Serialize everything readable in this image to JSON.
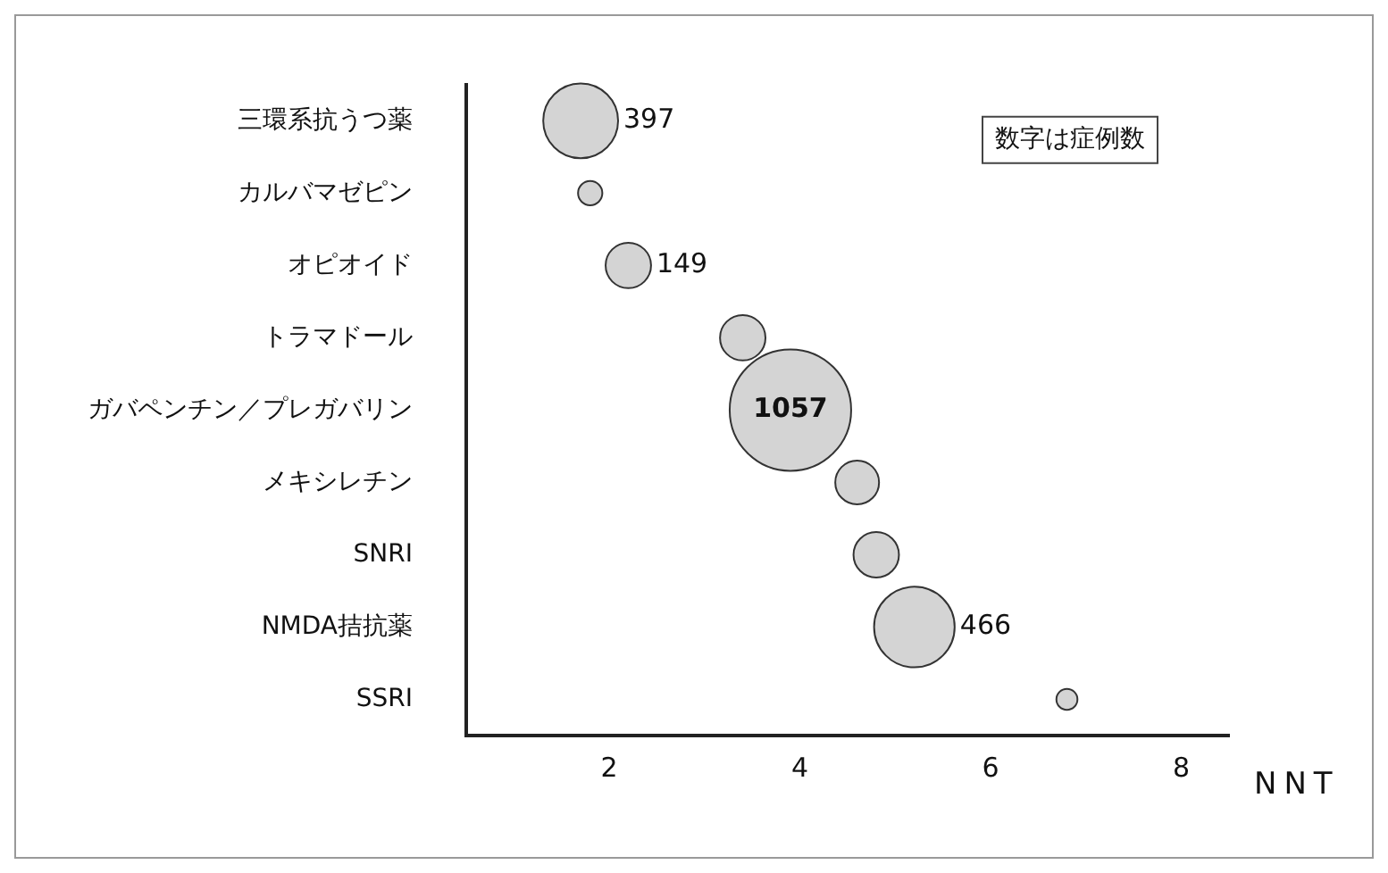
{
  "chart_data": {
    "type": "bubble",
    "orientation": "horizontal",
    "xlabel": "NNT",
    "categories": [
      "三環系抗うつ薬",
      "カルバマゼピン",
      "オピオイド",
      "トラマドール",
      "ガバペンチン／プレガバリン",
      "メキシレチン",
      "SNRI",
      "NMDA拮抗薬",
      "SSRI"
    ],
    "series": [
      {
        "color": "#d4d4d4",
        "values": [
          1.7,
          1.8,
          2.2,
          3.4,
          3.9,
          4.6,
          4.8,
          5.2,
          6.8
        ],
        "sizes": [
          0.38,
          0.04,
          0.14,
          0.14,
          1,
          0.13,
          0.14,
          0.44,
          0.03
        ]
      }
    ],
    "xlim": [
      0.5,
      8.5
    ],
    "xticks": [
      2,
      4,
      6,
      8
    ],
    "grid": false,
    "legend": false,
    "annotations": [
      "数字は症例数",
      {
        "text": "397",
        "x": 1.7,
        "y": "三環系抗うつ薬"
      },
      {
        "text": "149",
        "x": 2.2,
        "y": "オピオイド"
      },
      {
        "text": "1057",
        "x": 3.9,
        "y": "ガバペンチン／プレガバリン"
      },
      {
        "text": "466",
        "x": 5.2,
        "y": "NMDA拮抗薬"
      }
    ]
  }
}
